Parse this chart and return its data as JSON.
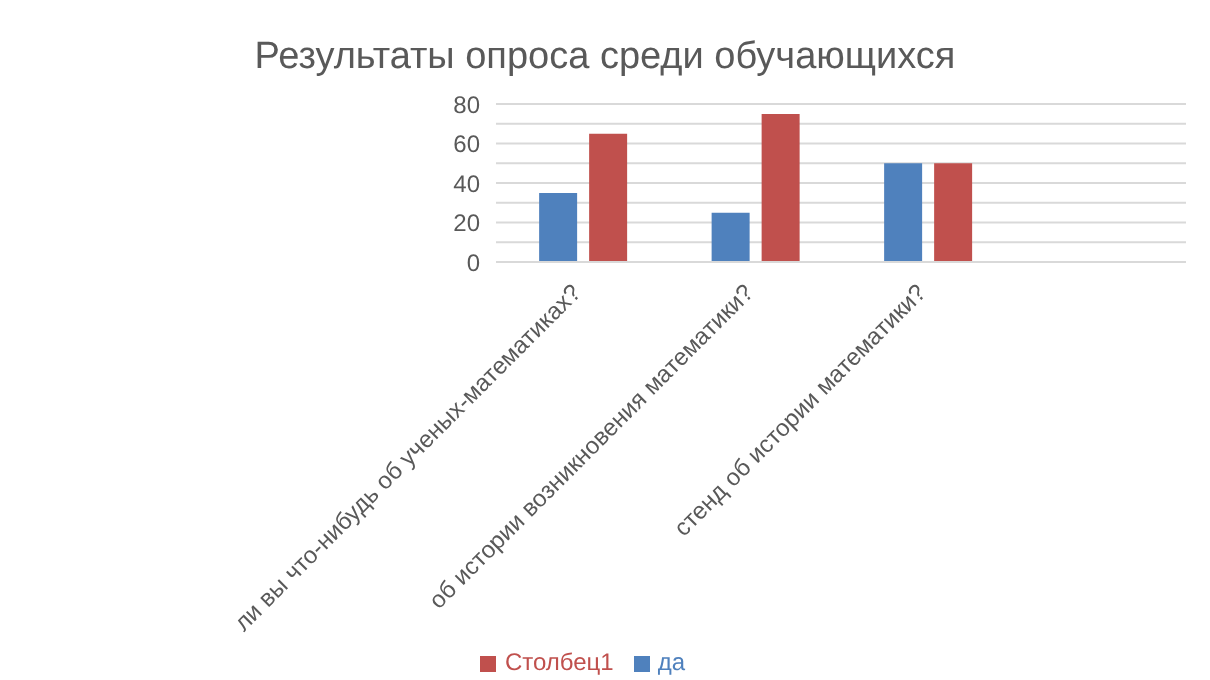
{
  "chart_data": {
    "type": "bar",
    "title": "Результаты опроса среди обучающихся",
    "categories": [
      "ли вы что-нибудь об ученых-математиках?",
      "об истории возникновения математики?",
      "стенд об истории математики?",
      null
    ],
    "series": [
      {
        "name": "да",
        "color": "#4f81bd",
        "values": [
          35,
          25,
          50,
          null
        ]
      },
      {
        "name": "Столбец1",
        "color": "#c0504d",
        "values": [
          65,
          75,
          50,
          null
        ]
      }
    ],
    "ylim": [
      0,
      80
    ],
    "yticks": [
      0,
      {
        "value": 10,
        "label": null
      },
      20,
      {
        "value": 30,
        "label": null
      },
      40,
      {
        "value": 50,
        "label": null
      },
      60,
      {
        "value": 70,
        "label": null
      },
      80
    ],
    "grid": "y",
    "legend": "bottom"
  }
}
